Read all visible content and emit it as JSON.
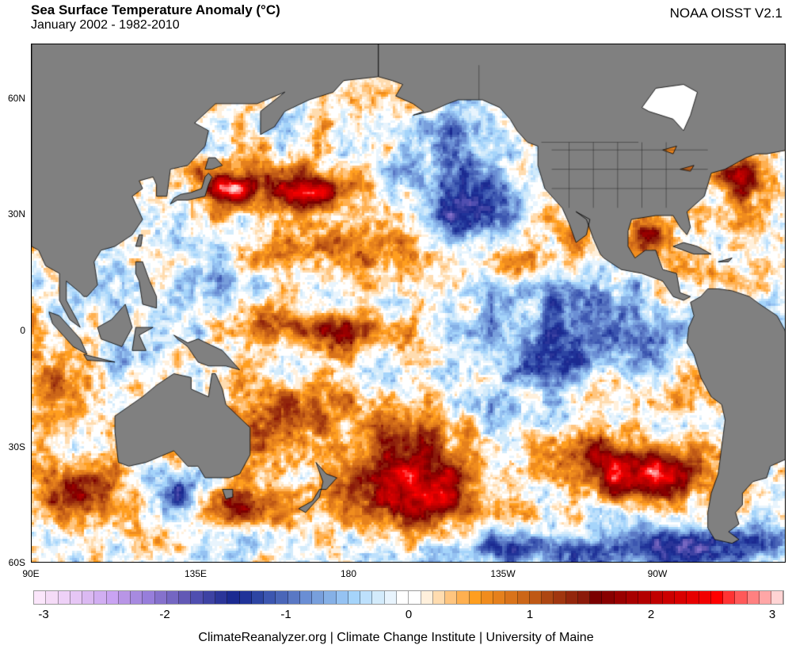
{
  "header": {
    "title": "Sea Surface Temperature Anomaly (°C)",
    "subtitle": "January 2002 - 1982-2010",
    "source": "NOAA OISST V2.1"
  },
  "map": {
    "lat_labels": [
      "60N",
      "30N",
      "0",
      "30S",
      "60S"
    ],
    "lon_labels": [
      "90E",
      "135E",
      "180",
      "135W",
      "90W"
    ],
    "land_color": "#808080"
  },
  "colorbar": {
    "min": -3.1,
    "max": 3.1,
    "tick_labels": [
      "-3",
      "-2",
      "-1",
      "0",
      "1",
      "2",
      "3"
    ],
    "colors": [
      "#fbe6fb",
      "#f5dbf7",
      "#eed1f7",
      "#e6c6f5",
      "#dbb9f2",
      "#d1aef2",
      "#c9a3f2",
      "#b895e6",
      "#a78ae0",
      "#977edb",
      "#8571cc",
      "#7466c2",
      "#6258b5",
      "#4f4eb0",
      "#3d42a3",
      "#2b3599",
      "#1b2a91",
      "#203399",
      "#2d45a3",
      "#3c56b0",
      "#4a66b8",
      "#5a78c4",
      "#6a8ed4",
      "#789fdc",
      "#85b0e6",
      "#95c2f2",
      "#a5d4fa",
      "#bde0fc",
      "#d3ebfb",
      "#e8f4fd",
      "#ffffff",
      "#ffffff",
      "#fff0dc",
      "#ffdcaf",
      "#ffc57f",
      "#ffb050",
      "#ff9e1f",
      "#f08c1e",
      "#e5801c",
      "#d9731a",
      "#cc6618",
      "#bf5815",
      "#ad4612",
      "#a0360f",
      "#93260c",
      "#8b1a0a",
      "#7a0000",
      "#880000",
      "#990000",
      "#a80000",
      "#b30000",
      "#c00000",
      "#cc0000",
      "#d90000",
      "#e60000",
      "#f20000",
      "#ff0000",
      "#ff3333",
      "#ff5959",
      "#ff8080",
      "#ffa6a6",
      "#ffd4d4"
    ]
  },
  "footer": "ClimateReanalyzer.org | Climate Change Institute | University of Maine"
}
